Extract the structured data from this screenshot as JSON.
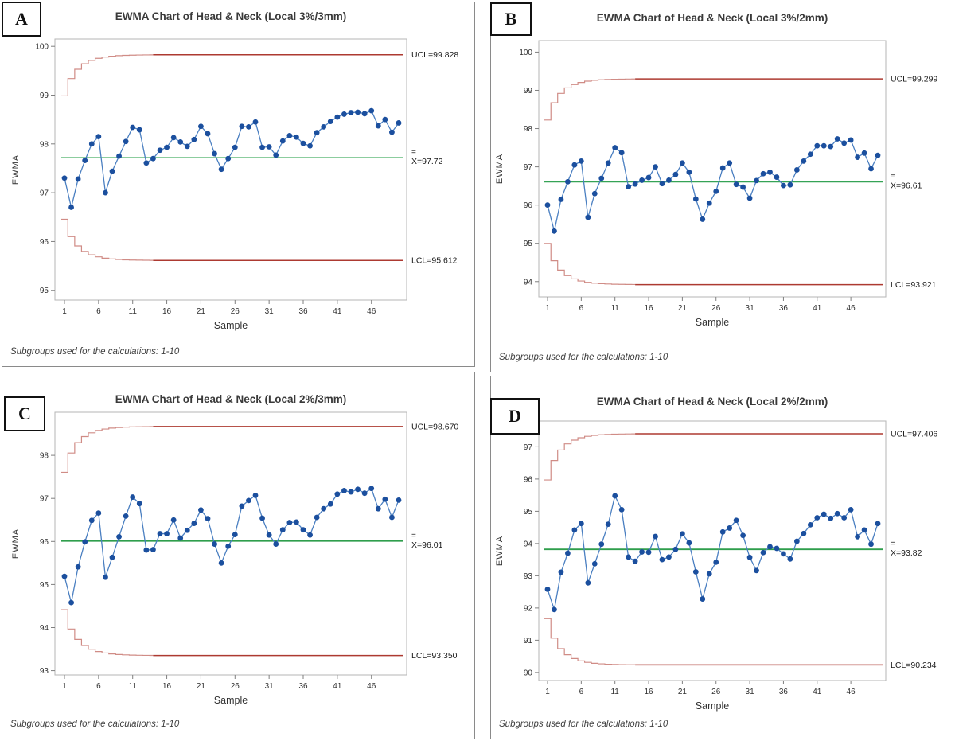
{
  "colors": {
    "panel_border": "#8a8a8a",
    "plot_border": "#b5b5b5",
    "label_box_border": "#111111",
    "title_text": "#3a3a3a",
    "tick_text": "#303030",
    "side_label_text": "#1a1a1a",
    "footnote_text": "#404040",
    "data_line": "#4a7fc1",
    "data_marker": "#1b4f9e",
    "limit_step_light": "#d08c86",
    "limit_dark": "#ad3a31",
    "center_line_colors": [
      "#7cc690",
      "#35a356",
      "#2f9e4c",
      "#2f9e4c"
    ]
  },
  "panels": [
    {
      "label": "A"
    },
    {
      "label": "B"
    },
    {
      "label": "C"
    },
    {
      "label": "D"
    }
  ],
  "chart_data": [
    {
      "type": "line",
      "panel": "A",
      "title": "EWMA Chart of Head & Neck (Local 3%/3mm)",
      "xlabel": "Sample",
      "ylabel": "EWMA",
      "footnote": "Subgroups used for the calculations: 1-10",
      "x_range": [
        1,
        50
      ],
      "x_ticks": [
        1,
        6,
        11,
        16,
        21,
        26,
        31,
        36,
        41,
        46
      ],
      "y_ticks": [
        95,
        96,
        97,
        98,
        99,
        100
      ],
      "ylim": [
        94.8,
        100.15
      ],
      "center": 97.72,
      "ucl": 99.828,
      "lcl": 95.612,
      "ucl_label": "UCL=99.828",
      "lcl_label": "LCL=95.612",
      "center_label": "X=97.72",
      "center_label_top": "=",
      "values": [
        97.3,
        96.7,
        97.28,
        97.66,
        98.0,
        98.15,
        97.0,
        97.44,
        97.75,
        98.05,
        98.34,
        98.29,
        97.61,
        97.7,
        97.87,
        97.93,
        98.13,
        98.04,
        97.95,
        98.09,
        98.36,
        98.21,
        97.8,
        97.48,
        97.7,
        97.93,
        98.36,
        98.35,
        98.45,
        97.93,
        97.94,
        97.77,
        98.06,
        98.17,
        98.14,
        98.01,
        97.96,
        98.23,
        98.35,
        98.46,
        98.55,
        98.61,
        98.64,
        98.65,
        98.62,
        98.68,
        98.37,
        98.5,
        98.24,
        98.43
      ]
    },
    {
      "type": "line",
      "panel": "B",
      "title": "EWMA Chart of Head & Neck (Local 3%/2mm)",
      "xlabel": "Sample",
      "ylabel": "EWMA",
      "footnote": "Subgroups used for the calculations: 1-10",
      "x_range": [
        1,
        50
      ],
      "x_ticks": [
        1,
        6,
        11,
        16,
        21,
        26,
        31,
        36,
        41,
        46
      ],
      "y_ticks": [
        94,
        95,
        96,
        97,
        98,
        99,
        100
      ],
      "ylim": [
        93.6,
        100.3
      ],
      "center": 96.61,
      "ucl": 99.299,
      "lcl": 93.921,
      "ucl_label": "UCL=99.299",
      "lcl_label": "LCL=93.921",
      "center_label": "X=96.61",
      "center_label_top": "=",
      "values": [
        96.0,
        95.32,
        96.15,
        96.61,
        97.05,
        97.15,
        95.68,
        96.3,
        96.7,
        97.1,
        97.5,
        97.37,
        96.48,
        96.55,
        96.65,
        96.72,
        97.0,
        96.56,
        96.65,
        96.8,
        97.1,
        96.86,
        96.16,
        95.63,
        96.05,
        96.36,
        96.97,
        97.1,
        96.54,
        96.47,
        96.18,
        96.64,
        96.82,
        96.86,
        96.73,
        96.51,
        96.53,
        96.92,
        97.15,
        97.33,
        97.55,
        97.55,
        97.53,
        97.73,
        97.62,
        97.7,
        97.25,
        97.36,
        96.95,
        97.3
      ]
    },
    {
      "type": "line",
      "panel": "C",
      "title": "EWMA Chart of Head & Neck (Local 2%/3mm)",
      "xlabel": "Sample",
      "ylabel": "EWMA",
      "footnote": "Subgroups used for the calculations: 1-10",
      "x_range": [
        1,
        50
      ],
      "x_ticks": [
        1,
        6,
        11,
        16,
        21,
        26,
        31,
        36,
        41,
        46
      ],
      "y_ticks": [
        93,
        94,
        95,
        96,
        97,
        98
      ],
      "ylim": [
        92.9,
        99.0
      ],
      "center": 96.01,
      "ucl": 98.67,
      "lcl": 93.35,
      "ucl_label": "UCL=98.670",
      "lcl_label": "LCL=93.350",
      "center_label": "X=96.01",
      "center_label_top": "=",
      "values": [
        95.19,
        94.58,
        95.41,
        95.99,
        96.49,
        96.66,
        95.17,
        95.63,
        96.11,
        96.59,
        97.03,
        96.88,
        95.8,
        95.81,
        96.18,
        96.18,
        96.5,
        96.08,
        96.26,
        96.42,
        96.73,
        96.53,
        95.94,
        95.5,
        95.89,
        96.16,
        96.82,
        96.95,
        97.07,
        96.54,
        96.15,
        95.94,
        96.27,
        96.44,
        96.45,
        96.27,
        96.15,
        96.56,
        96.76,
        96.87,
        97.1,
        97.18,
        97.15,
        97.21,
        97.12,
        97.23,
        96.76,
        96.98,
        96.56,
        96.96
      ]
    },
    {
      "type": "line",
      "panel": "D",
      "title": "EWMA Chart of Head & Neck (Local 2%/2mm)",
      "xlabel": "Sample",
      "ylabel": "EWMA",
      "footnote": "Subgroups used for the calculations: 1-10",
      "x_range": [
        1,
        50
      ],
      "x_ticks": [
        1,
        6,
        11,
        16,
        21,
        26,
        31,
        36,
        41,
        46
      ],
      "y_ticks": [
        90,
        91,
        92,
        93,
        94,
        95,
        96,
        97
      ],
      "ylim": [
        89.75,
        97.8
      ],
      "center": 93.82,
      "ucl": 97.406,
      "lcl": 90.234,
      "ucl_label": "UCL=97.406",
      "lcl_label": "LCL=90.234",
      "center_label": "X=93.82",
      "center_label_top": "=",
      "values": [
        92.58,
        91.95,
        93.11,
        93.7,
        94.42,
        94.62,
        92.78,
        93.37,
        93.98,
        94.6,
        95.48,
        95.05,
        93.58,
        93.45,
        93.74,
        93.73,
        94.22,
        93.5,
        93.58,
        93.82,
        94.3,
        94.02,
        93.12,
        92.28,
        93.06,
        93.42,
        94.36,
        94.48,
        94.72,
        94.25,
        93.57,
        93.16,
        93.72,
        93.9,
        93.85,
        93.68,
        93.52,
        94.07,
        94.31,
        94.58,
        94.8,
        94.91,
        94.78,
        94.93,
        94.8,
        95.05,
        94.21,
        94.42,
        93.98,
        94.62
      ]
    }
  ]
}
